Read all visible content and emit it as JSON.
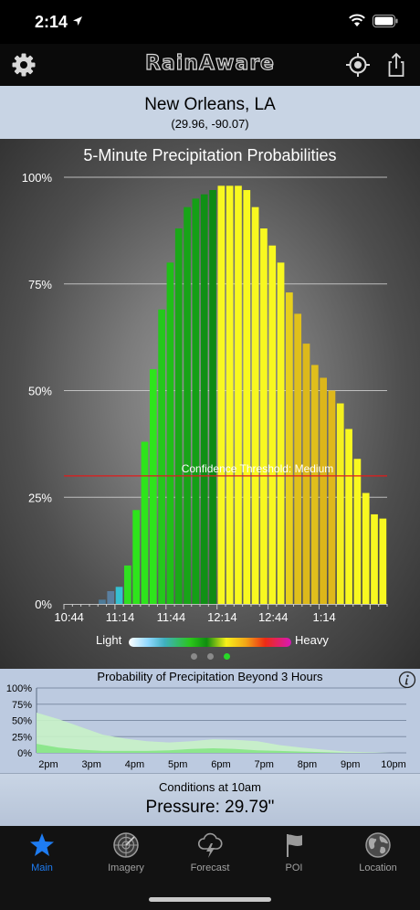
{
  "status_bar": {
    "time": "2:14"
  },
  "app": {
    "logo": "RainAware"
  },
  "location": {
    "name": "New Orleans, LA",
    "coords": "(29.96, -90.07)"
  },
  "legend": {
    "light": "Light",
    "heavy": "Heavy"
  },
  "pager": {
    "count": 3,
    "active": 2
  },
  "conditions": {
    "label": "Conditions at 10am",
    "value": "Pressure: 29.79\""
  },
  "tabs": [
    {
      "label": "Main",
      "icon": "star-icon",
      "active": true
    },
    {
      "label": "Imagery",
      "icon": "radar-icon",
      "active": false
    },
    {
      "label": "Forecast",
      "icon": "storm-cloud-icon",
      "active": false
    },
    {
      "label": "POI",
      "icon": "flag-icon",
      "active": false
    },
    {
      "label": "Location",
      "icon": "globe-icon",
      "active": false
    }
  ],
  "colors": {
    "accent": "#1e7cf2",
    "threshold": "#e21b1b"
  },
  "chart_data": [
    {
      "type": "bar",
      "title": "5-Minute Precipitation Probabilities",
      "x_ticks": [
        "10:44",
        "11:14",
        "11:44",
        "12:14",
        "12:44",
        "1:14"
      ],
      "y_ticks": [
        "0%",
        "25%",
        "50%",
        "75%",
        "100%"
      ],
      "ylim": [
        0,
        100
      ],
      "grid": true,
      "values": [
        0,
        0,
        0,
        0,
        1,
        3,
        4,
        9,
        22,
        38,
        55,
        69,
        80,
        88,
        93,
        95,
        96,
        97,
        98,
        98,
        98,
        97,
        93,
        88,
        84,
        80,
        73,
        68,
        61,
        56,
        53,
        50,
        47,
        41,
        34,
        26,
        21,
        20
      ],
      "bar_colors": [
        "#787878",
        "#787878",
        "#787878",
        "#787878",
        "#4d7a98",
        "#5a7fa0",
        "#35c0d2",
        "#30e020",
        "#2ee41c",
        "#2ee41c",
        "#2ee41c",
        "#24c81c",
        "#20bf18",
        "#1aa818",
        "#18a418",
        "#14a016",
        "#109015",
        "#0e8a14",
        "#f8f820",
        "#f8f820",
        "#f8f820",
        "#f8f820",
        "#f8f820",
        "#f8f820",
        "#f8f820",
        "#f8f820",
        "#e8d01c",
        "#e0c01b",
        "#dcb91b",
        "#e0bf1c",
        "#dcb61a",
        "#dfb81b",
        "#f4f01f",
        "#f8f820",
        "#f8f820",
        "#f8f820",
        "#f8f820",
        "#f8f820"
      ],
      "annotations": [
        {
          "text": "Confidence Threshold: Medium",
          "y": 30
        }
      ]
    },
    {
      "type": "area",
      "title": "Probability of Precipitation Beyond 3 Hours",
      "x_ticks": [
        "2pm",
        "3pm",
        "4pm",
        "5pm",
        "6pm",
        "7pm",
        "8pm",
        "9pm",
        "10pm"
      ],
      "y_ticks": [
        "0%",
        "25%",
        "50%",
        "75%",
        "100%"
      ],
      "ylim": [
        0,
        100
      ],
      "grid": true,
      "series": [
        {
          "values": [
            62,
            52,
            40,
            28,
            22,
            18,
            16,
            18,
            21,
            20,
            18,
            12,
            8,
            5,
            2,
            1,
            0
          ],
          "color": "#c8f2c8"
        },
        {
          "values": [
            14,
            8,
            5,
            3,
            3,
            3,
            4,
            6,
            7,
            6,
            4,
            3,
            2,
            1,
            0,
            0,
            0
          ],
          "color": "#86e486"
        }
      ]
    }
  ]
}
